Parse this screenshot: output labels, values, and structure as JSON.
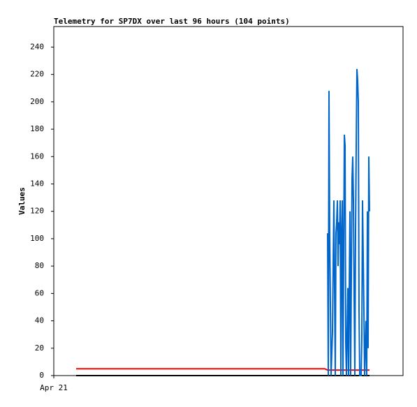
{
  "chart_data": {
    "type": "line",
    "title": "Telemetry for SP7DX over last 96 hours (104 points)",
    "y_label": "Values",
    "xlim": [
      0,
      500
    ],
    "xticks": [
      {
        "value": 0,
        "label": "Apr 21"
      }
    ],
    "ylim": [
      0,
      255
    ],
    "yticks": [
      0,
      20,
      40,
      60,
      80,
      100,
      120,
      140,
      160,
      180,
      200,
      220,
      240
    ],
    "grid": false,
    "series": [
      {
        "color": "#ff0000",
        "x": [
          32,
          388,
          392,
          452
        ],
        "values": [
          5,
          5,
          4,
          4
        ]
      },
      {
        "color": "#000000",
        "x": [
          32,
          452
        ],
        "values": [
          0,
          0
        ]
      },
      {
        "color": "#0066cc",
        "x": [
          392,
          393,
          394,
          395,
          397,
          399,
          401,
          403,
          404,
          405,
          406,
          407,
          408,
          409,
          410,
          411,
          412,
          413,
          414,
          416,
          417,
          418,
          419,
          421,
          422,
          424,
          425,
          427,
          428,
          429,
          430,
          431,
          432,
          433,
          434,
          435,
          436,
          437,
          438,
          440,
          441,
          442,
          443,
          444,
          445,
          446,
          447,
          448,
          449,
          450,
          451,
          452
        ],
        "values": [
          104,
          0,
          208,
          104,
          0,
          32,
          128,
          0,
          104,
          112,
          128,
          80,
          112,
          96,
          128,
          0,
          104,
          128,
          0,
          176,
          168,
          24,
          0,
          64,
          0,
          120,
          0,
          144,
          160,
          128,
          56,
          0,
          104,
          168,
          224,
          216,
          200,
          48,
          0,
          0,
          28,
          128,
          88,
          48,
          0,
          20,
          40,
          0,
          120,
          20,
          160,
          120
        ]
      }
    ]
  }
}
